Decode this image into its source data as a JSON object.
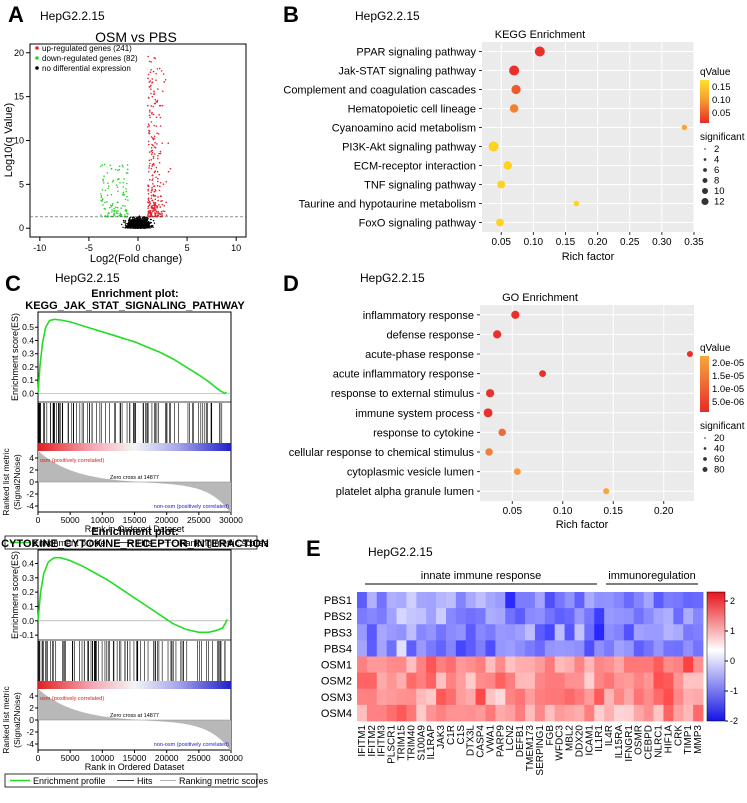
{
  "panels": {
    "A": {
      "letter": "A",
      "cell": "HepG2.2.15"
    },
    "B": {
      "letter": "B",
      "cell": "HepG2.2.15"
    },
    "C": {
      "letter": "C",
      "cell": "HepG2.2.15"
    },
    "D": {
      "letter": "D",
      "cell": "HepG2.2.15"
    },
    "E": {
      "letter": "E",
      "cell": "HepG2.2.15"
    }
  },
  "chart_data": [
    {
      "id": "volcano",
      "type": "scatter",
      "title": "OSM vs PBS",
      "xlabel": "Log2(Fold change)",
      "ylabel": "Log10(q Value)",
      "xlim": [
        -11,
        11
      ],
      "ylim": [
        -1,
        21
      ],
      "xticks": [
        "-10",
        "-5",
        "0",
        "5",
        "10"
      ],
      "xtick_values": [
        -10,
        -5,
        0,
        5,
        10
      ],
      "yticks": [
        "0",
        "5",
        "10",
        "15",
        "20"
      ],
      "ytick_values": [
        0,
        5,
        10,
        15,
        20
      ],
      "threshold_q": 1.3,
      "legend": [
        {
          "label": "up-regulated genes (241)",
          "color": "#e8202a"
        },
        {
          "label": "down-regulated genes (82)",
          "color": "#2bd12b"
        },
        {
          "label": "no differential expression",
          "color": "#000000"
        }
      ]
    },
    {
      "id": "kegg",
      "type": "scatter",
      "title": "KEGG Enrichment",
      "xlabel": "Rich factor",
      "xlim": [
        0.02,
        0.35
      ],
      "xticks": [
        "0.05",
        "0.10",
        "0.15",
        "0.20",
        "0.25",
        "0.30",
        "0.35"
      ],
      "xtick_values": [
        0.05,
        0.1,
        0.15,
        0.2,
        0.25,
        0.3,
        0.35
      ],
      "categories": [
        "PPAR signaling pathway",
        "Jak-STAT signaling pathway",
        "Complement and coagulation cascades",
        "Hematopoietic cell lineage",
        "Cyanoamino acid metabolism",
        "PI3K-Akt signaling pathway",
        "ECM-receptor interaction",
        "TNF signaling pathway",
        "Taurine and hypotaurine metabolism",
        "FoxO signaling pathway"
      ],
      "x": [
        0.11,
        0.07,
        0.073,
        0.07,
        0.335,
        0.038,
        0.06,
        0.05,
        0.167,
        0.048
      ],
      "size": [
        9,
        9,
        8,
        7,
        3,
        9,
        7,
        6,
        3,
        6
      ],
      "color": [
        "#e8302c",
        "#e8302c",
        "#ef5a2a",
        "#f4812e",
        "#f6a83a",
        "#ffd21c",
        "#ffd21c",
        "#ffd21c",
        "#ffd21c",
        "#ffd21c"
      ],
      "legend_color_title": "qValue",
      "legend_color_ticks": [
        "0.15",
        "0.10",
        "0.05"
      ],
      "legend_size_title": "significant",
      "legend_size_labels": [
        "2",
        "4",
        "6",
        "8",
        "10",
        "12"
      ]
    },
    {
      "id": "gsea_jak",
      "type": "line",
      "title_line1": "Enrichment plot:",
      "title_line2": "KEGG_JAK_STAT_SIGNALING_PATHWAY",
      "ylabel": "Enrichment score(ES)",
      "ylabel2": "Ranked list metric (Signal2Noise)",
      "xlabel": "Rank in Ordered Dataset",
      "xlim": [
        0,
        30000
      ],
      "ylim": [
        -0.05,
        0.6
      ],
      "yticks": [
        "0.5",
        "0.4",
        "0.3",
        "0.2",
        "0.1",
        "0.0"
      ],
      "ytick_values": [
        0.5,
        0.4,
        0.3,
        0.2,
        0.1,
        0.0
      ],
      "xticks": [
        "0",
        "5000",
        "10000",
        "15000",
        "20000",
        "25000",
        "30000"
      ],
      "xtick_values": [
        0,
        5000,
        10000,
        15000,
        20000,
        25000,
        30000
      ],
      "rank_yticks": [
        "4",
        "2",
        "0",
        "-2",
        "-4"
      ],
      "rank_ytick_values": [
        4,
        2,
        0,
        -2,
        -4
      ],
      "x": [
        0,
        300,
        700,
        1200,
        1800,
        2500,
        3500,
        5000,
        7000,
        9000,
        11000,
        13000,
        15000,
        17000,
        19000,
        21000,
        23000,
        25000,
        26500,
        27500,
        28300,
        28700,
        29000,
        29300
      ],
      "y": [
        0,
        0.2,
        0.38,
        0.5,
        0.55,
        0.56,
        0.555,
        0.54,
        0.51,
        0.48,
        0.45,
        0.42,
        0.39,
        0.35,
        0.31,
        0.26,
        0.2,
        0.14,
        0.09,
        0.05,
        0.02,
        0.01,
        0.0,
        0.01
      ],
      "pos_label": "osm (positively correlated)",
      "neg_label": "non-osm (positively correlated)",
      "zero_cross": "Zero cross at 14877",
      "legend": [
        "Enrichment profile",
        "Hits",
        "Ranking metric scores"
      ]
    },
    {
      "id": "gsea_cytokine",
      "type": "line",
      "title_line1": "Enrichment plot:",
      "title_line2": "CYTOKINE_CYTOKINE_RECEPTOR_INTERACTION",
      "ylabel": "Enrichment score(ES)",
      "ylabel2": "Ranked list metric (Signal2Noise)",
      "xlabel": "Rank in Ordered Dataset",
      "xlim": [
        0,
        30000
      ],
      "ylim": [
        -0.12,
        0.48
      ],
      "yticks": [
        "0.4",
        "0.3",
        "0.2",
        "0.1",
        "0.0",
        "-0.1"
      ],
      "ytick_values": [
        0.4,
        0.3,
        0.2,
        0.1,
        0.0,
        -0.1
      ],
      "xticks": [
        "0",
        "5000",
        "10000",
        "15000",
        "20000",
        "25000",
        "30000"
      ],
      "xtick_values": [
        0,
        5000,
        10000,
        15000,
        20000,
        25000,
        30000
      ],
      "rank_yticks": [
        "4",
        "2",
        "0",
        "-2",
        "-4"
      ],
      "rank_ytick_values": [
        4,
        2,
        0,
        -2,
        -4
      ],
      "x": [
        0,
        400,
        900,
        1600,
        2500,
        3500,
        5000,
        7000,
        9000,
        11000,
        13000,
        15000,
        17000,
        19000,
        21000,
        23000,
        25000,
        26500,
        27500,
        28200,
        28700,
        29100,
        29400
      ],
      "y": [
        0,
        0.2,
        0.33,
        0.41,
        0.44,
        0.44,
        0.42,
        0.38,
        0.33,
        0.28,
        0.22,
        0.16,
        0.1,
        0.04,
        -0.02,
        -0.06,
        -0.08,
        -0.08,
        -0.07,
        -0.06,
        -0.05,
        -0.02,
        0.01
      ],
      "pos_label": "osm (positively correlated)",
      "neg_label": "non-osm (positively correlated)",
      "zero_cross": "Zero cross at 14877",
      "legend": [
        "Enrichment profile",
        "Hits",
        "Ranking metric scores"
      ]
    },
    {
      "id": "go",
      "type": "scatter",
      "title": "GO Enrichment",
      "xlabel": "Rich factor",
      "xlim": [
        0.018,
        0.23
      ],
      "xticks": [
        "0.05",
        "0.10",
        "0.15",
        "0.20"
      ],
      "xtick_values": [
        0.05,
        0.1,
        0.15,
        0.2
      ],
      "categories": [
        "inflammatory response",
        "defense response",
        "acute-phase response",
        "acute inflammatory response",
        "response to external stimulus",
        "immune system process",
        "response to cytokine",
        "cellular response to chemical stimulus",
        "cytoplasmic vesicle lumen",
        "platelet alpha granule lumen"
      ],
      "x": [
        0.053,
        0.035,
        0.226,
        0.08,
        0.028,
        0.026,
        0.04,
        0.027,
        0.055,
        0.143
      ],
      "size": [
        8,
        8,
        5,
        6,
        8,
        9,
        7,
        7,
        6,
        5
      ],
      "color": [
        "#e8302c",
        "#e8302c",
        "#e8302c",
        "#e8302c",
        "#e8302c",
        "#e8302c",
        "#ef6a3a",
        "#f08038",
        "#f59a3c",
        "#f6a83a"
      ],
      "legend_color_title": "qValue",
      "legend_color_ticks": [
        "2.0e-05",
        "1.5e-05",
        "1.0e-05",
        "5.0e-06"
      ],
      "legend_size_title": "significant",
      "legend_size_labels": [
        "20",
        "40",
        "60",
        "80"
      ]
    },
    {
      "id": "heatmap",
      "type": "heatmap",
      "rows": [
        "PBS1",
        "PBS2",
        "PBS3",
        "PBS4",
        "OSM1",
        "OSM2",
        "OSM3",
        "OSM4"
      ],
      "columns": [
        "IFITM1",
        "IFITM2",
        "IFITM3",
        "PLSCR1",
        "TRIM15",
        "TRIM40",
        "S100A9",
        "IL1RAP",
        "JAK3",
        "C1R",
        "C1S",
        "DTX3L",
        "CASP4",
        "VWA1",
        "PARP9",
        "LCN2",
        "DEFB1",
        "TMEM173",
        "SERPING1",
        "FGB",
        "WFDC3",
        "MBL2",
        "DDX20",
        "ICAM1",
        "IL1R1",
        "IL4R",
        "IL15RA",
        "IFNGR1",
        "OSMR",
        "CEBPD",
        "NLRC1",
        "HIF1A",
        "CRK",
        "TIMP1",
        "MMP3"
      ],
      "group_labels": [
        "innate immune response",
        "immunoregulation"
      ],
      "colorbar_ticks": [
        "2",
        "1",
        "0",
        "-1",
        "-2"
      ],
      "colorbar_tick_values": [
        2,
        1,
        0,
        -1,
        -2
      ],
      "vmin": -2,
      "vmax": 2.3
    }
  ]
}
